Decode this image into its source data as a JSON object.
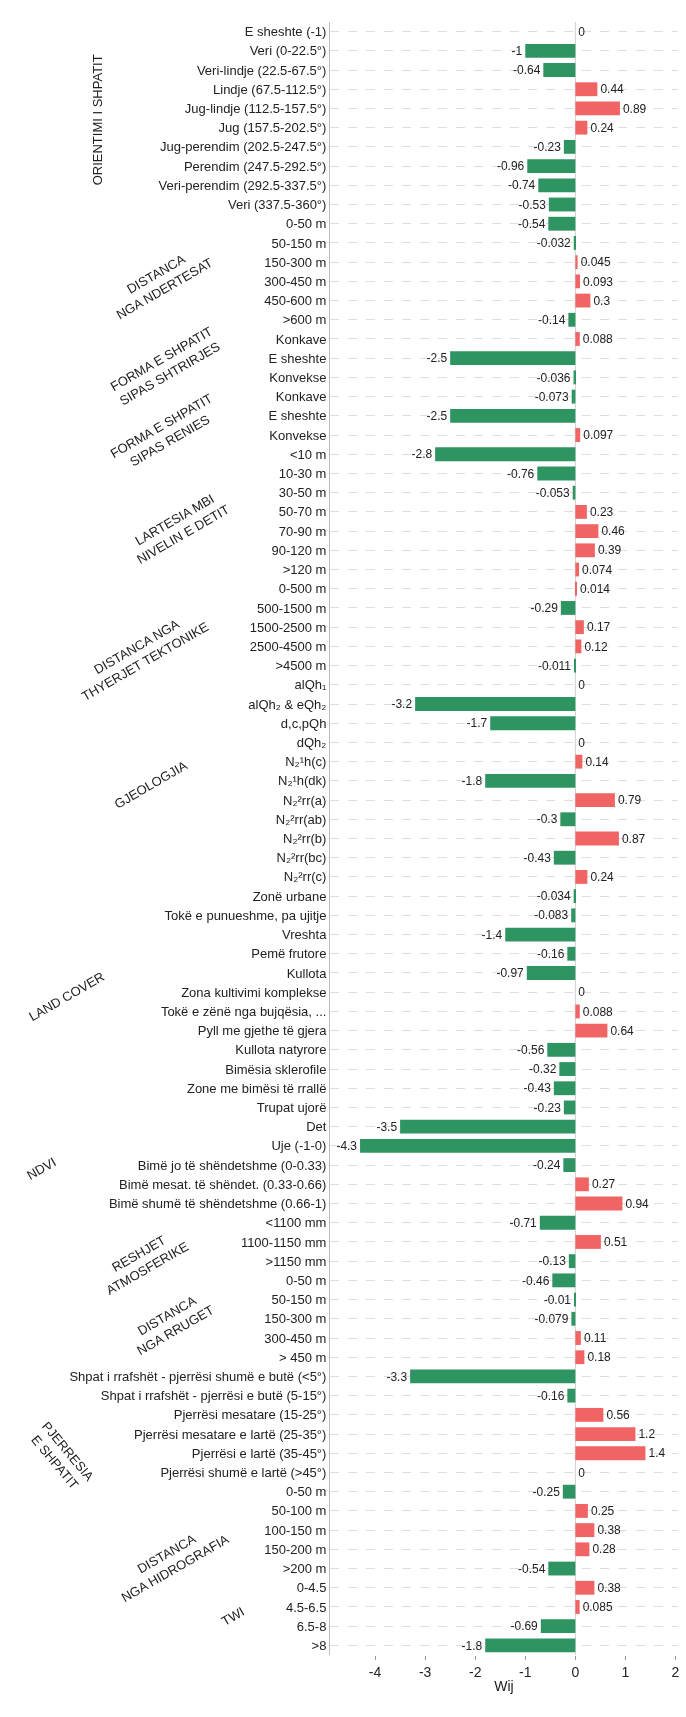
{
  "chart_data": {
    "type": "bar",
    "orientation": "horizontal",
    "xlabel": "Wij",
    "categories": [
      "E sheshte (-1)",
      "Veri (0-22.5°)",
      "Veri-lindje (22.5-67.5°)",
      "Lindje (67.5-112.5°)",
      "Jug-lindje (112.5-157.5°)",
      "Jug (157.5-202.5°)",
      "Jug-perendim (202.5-247.5°)",
      "Perendim (247.5-292.5°)",
      "Veri-perendim (292.5-337.5°)",
      "Veri (337.5-360°)",
      "0-50 m",
      "50-150 m",
      "150-300 m",
      "300-450 m",
      "450-600 m",
      ">600 m",
      "Konkave",
      "E sheshte",
      "Konvekse",
      "Konkave",
      "E sheshte",
      "Konvekse",
      "<10 m",
      "10-30 m",
      "30-50 m",
      "50-70 m",
      "70-90 m",
      "90-120 m",
      ">120 m",
      "0-500 m",
      "500-1500 m",
      "1500-2500 m",
      "2500-4500 m",
      ">4500 m",
      "alQh₁",
      "alQh₂ & eQh₂",
      "d,c,pQh",
      "dQh₂",
      "N₂¹h(c)",
      "N₂¹h(dk)",
      "N₂²rr(a)",
      "N₂²rr(ab)",
      "N₂²rr(b)",
      "N₂²rr(bc)",
      "N₂²rr(c)",
      "Zonë urbane",
      "Tokë e punueshme, pa ujitje",
      "Vreshta",
      "Pemë frutore",
      "Kullota",
      "Zona kultivimi komplekse",
      "Tokë e zënë nga bujqësia, ...",
      "Pyll me gjethe të gjera",
      "Kullota natyrore",
      "Bimësia sklerofile",
      "Zone me bimësi të rrallë",
      "Trupat ujorë",
      "Det",
      "Uje (-1-0)",
      "Bimë jo të shëndetshme (0-0.33)",
      "Bimë mesat. të shëndet. (0.33-0.66)",
      "Bimë shumë të shëndetshme (0.66-1)",
      "<1100 mm",
      "1100-1150 mm",
      ">1150 mm",
      "0-50 m",
      "50-150 m",
      "150-300 m",
      "300-450 m",
      "> 450 m",
      "Shpat i rrafshët - pjerrësi shumë e butë (<5°)",
      "Shpat i rrafshët - pjerrësi e butë (5-15°)",
      "Pjerrësi mesatare (15-25°)",
      "Pjerrësi mesatare e lartë (25-35°)",
      "Pjerrësi e lartë (35-45°)",
      "Pjerrësi shumë e lartë (>45°)",
      "0-50 m",
      "50-100 m",
      "100-150 m",
      "150-200 m",
      ">200 m",
      "0-4.5",
      "4.5-6.5",
      "6.5-8",
      ">8"
    ],
    "values": [
      0,
      -1,
      -0.64,
      0.44,
      0.89,
      0.24,
      -0.23,
      -0.96,
      -0.74,
      -0.53,
      -0.54,
      -0.032,
      0.045,
      0.093,
      0.3,
      -0.14,
      0.088,
      -2.5,
      -0.036,
      -0.073,
      -2.5,
      0.097,
      -2.8,
      -0.76,
      -0.053,
      0.23,
      0.46,
      0.39,
      0.074,
      0.014,
      -0.29,
      0.17,
      0.12,
      -0.011,
      0,
      -3.2,
      -1.7,
      0,
      0.14,
      -1.8,
      0.79,
      -0.3,
      0.87,
      -0.43,
      0.24,
      -0.034,
      -0.083,
      -1.4,
      -0.16,
      -0.97,
      0,
      0.088,
      0.64,
      -0.56,
      -0.32,
      -0.43,
      -0.23,
      -3.5,
      -4.3,
      -0.24,
      0.27,
      0.94,
      -0.71,
      0.51,
      -0.13,
      -0.46,
      -0.01,
      -0.079,
      0.11,
      0.18,
      -3.3,
      -0.16,
      0.56,
      1.2,
      1.4,
      0,
      -0.25,
      0.25,
      0.38,
      0.28,
      -0.54,
      0.38,
      0.085,
      -0.69,
      -1.8
    ],
    "colors": [
      "#2e9461",
      "#2e9461",
      "#2e9461",
      "#f06464",
      "#f06464",
      "#f06464",
      "#2e9461",
      "#2e9461",
      "#2e9461",
      "#2e9461",
      "#2e9461",
      "#2e9461",
      "#f06464",
      "#f06464",
      "#f06464",
      "#2e9461",
      "#f06464",
      "#2e9461",
      "#2e9461",
      "#2e9461",
      "#2e9461",
      "#f06464",
      "#2e9461",
      "#2e9461",
      "#2e9461",
      "#f06464",
      "#f06464",
      "#f06464",
      "#f06464",
      "#f06464",
      "#2e9461",
      "#f06464",
      "#f06464",
      "#2e9461",
      "#2e9461",
      "#2e9461",
      "#2e9461",
      "#2e9461",
      "#f06464",
      "#2e9461",
      "#f06464",
      "#2e9461",
      "#f06464",
      "#2e9461",
      "#f06464",
      "#2e9461",
      "#2e9461",
      "#2e9461",
      "#2e9461",
      "#2e9461",
      "#2e9461",
      "#f06464",
      "#f06464",
      "#2e9461",
      "#2e9461",
      "#2e9461",
      "#2e9461",
      "#2e9461",
      "#2e9461",
      "#2e9461",
      "#f06464",
      "#f06464",
      "#2e9461",
      "#f06464",
      "#2e9461",
      "#2e9461",
      "#2e9461",
      "#2e9461",
      "#f06464",
      "#f06464",
      "#2e9461",
      "#2e9461",
      "#f06464",
      "#f06464",
      "#f06464",
      "#2e9461",
      "#2e9461",
      "#f06464",
      "#f06464",
      "#f06464",
      "#2e9461",
      "#f06464",
      "#f06464",
      "#2e9461",
      "#2e9461"
    ],
    "xlim": [
      -4.9,
      2.05
    ],
    "xticks": [
      -4,
      -3,
      -2,
      -1,
      0,
      1,
      2
    ],
    "data_labels": true,
    "grid": "y",
    "legend": false,
    "annotations": [
      "ORIENTIMI I SHPATIT",
      "DISTANCA\nNGA NDERTESAT",
      "FORMA E SHPATIT\nSIPAS SHTRIRJES",
      "FORMA E SHPATIT\nSIPAS RENIES",
      "LARTESIA MBI\nNIVELIN E DETIT",
      "DISTANCA NGA\nTHYERJET TEKTONIKE",
      "GJEOLOGJIA",
      "LAND COVER",
      "NDVI",
      "RESHJET\nATMOSFERIKE",
      "DISTANCA\nNGA RRUGET",
      "PJERRESIA\nE SHPATIT",
      "DISTANCA\nNGA HIDROGRAFIA",
      "TWI"
    ]
  }
}
